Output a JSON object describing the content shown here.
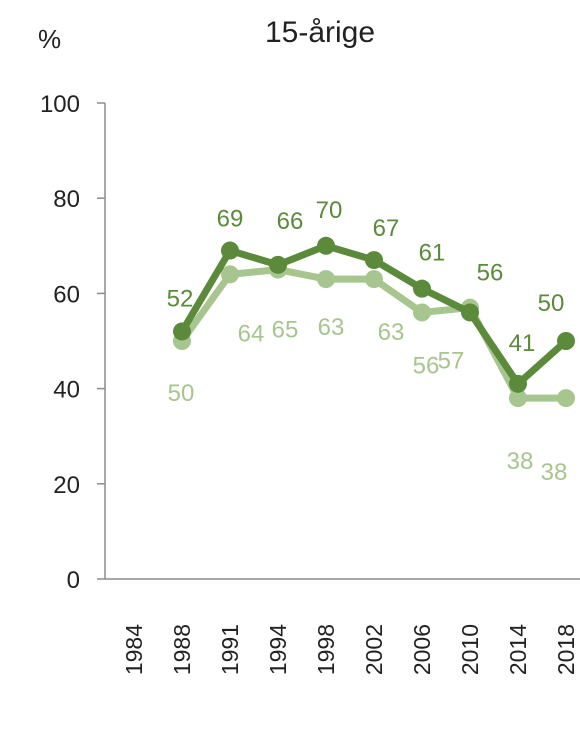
{
  "chart_data": {
    "type": "line",
    "title": "15-årige",
    "ylabel": "%",
    "xlabel": "",
    "ylim": [
      0,
      100
    ],
    "yticks": [
      0,
      20,
      40,
      60,
      80,
      100
    ],
    "categories": [
      "1984",
      "1988",
      "1991",
      "1994",
      "1998",
      "2002",
      "2006",
      "2010",
      "2014",
      "2018"
    ],
    "series": [
      {
        "color": "#5a8a3a",
        "values": [
          null,
          52,
          69,
          66,
          70,
          67,
          61,
          56,
          41,
          50
        ]
      },
      {
        "color": "#a7c58e",
        "values": [
          null,
          50,
          64,
          65,
          63,
          63,
          56,
          57,
          38,
          38
        ]
      }
    ],
    "grid": false,
    "legend": "none"
  }
}
